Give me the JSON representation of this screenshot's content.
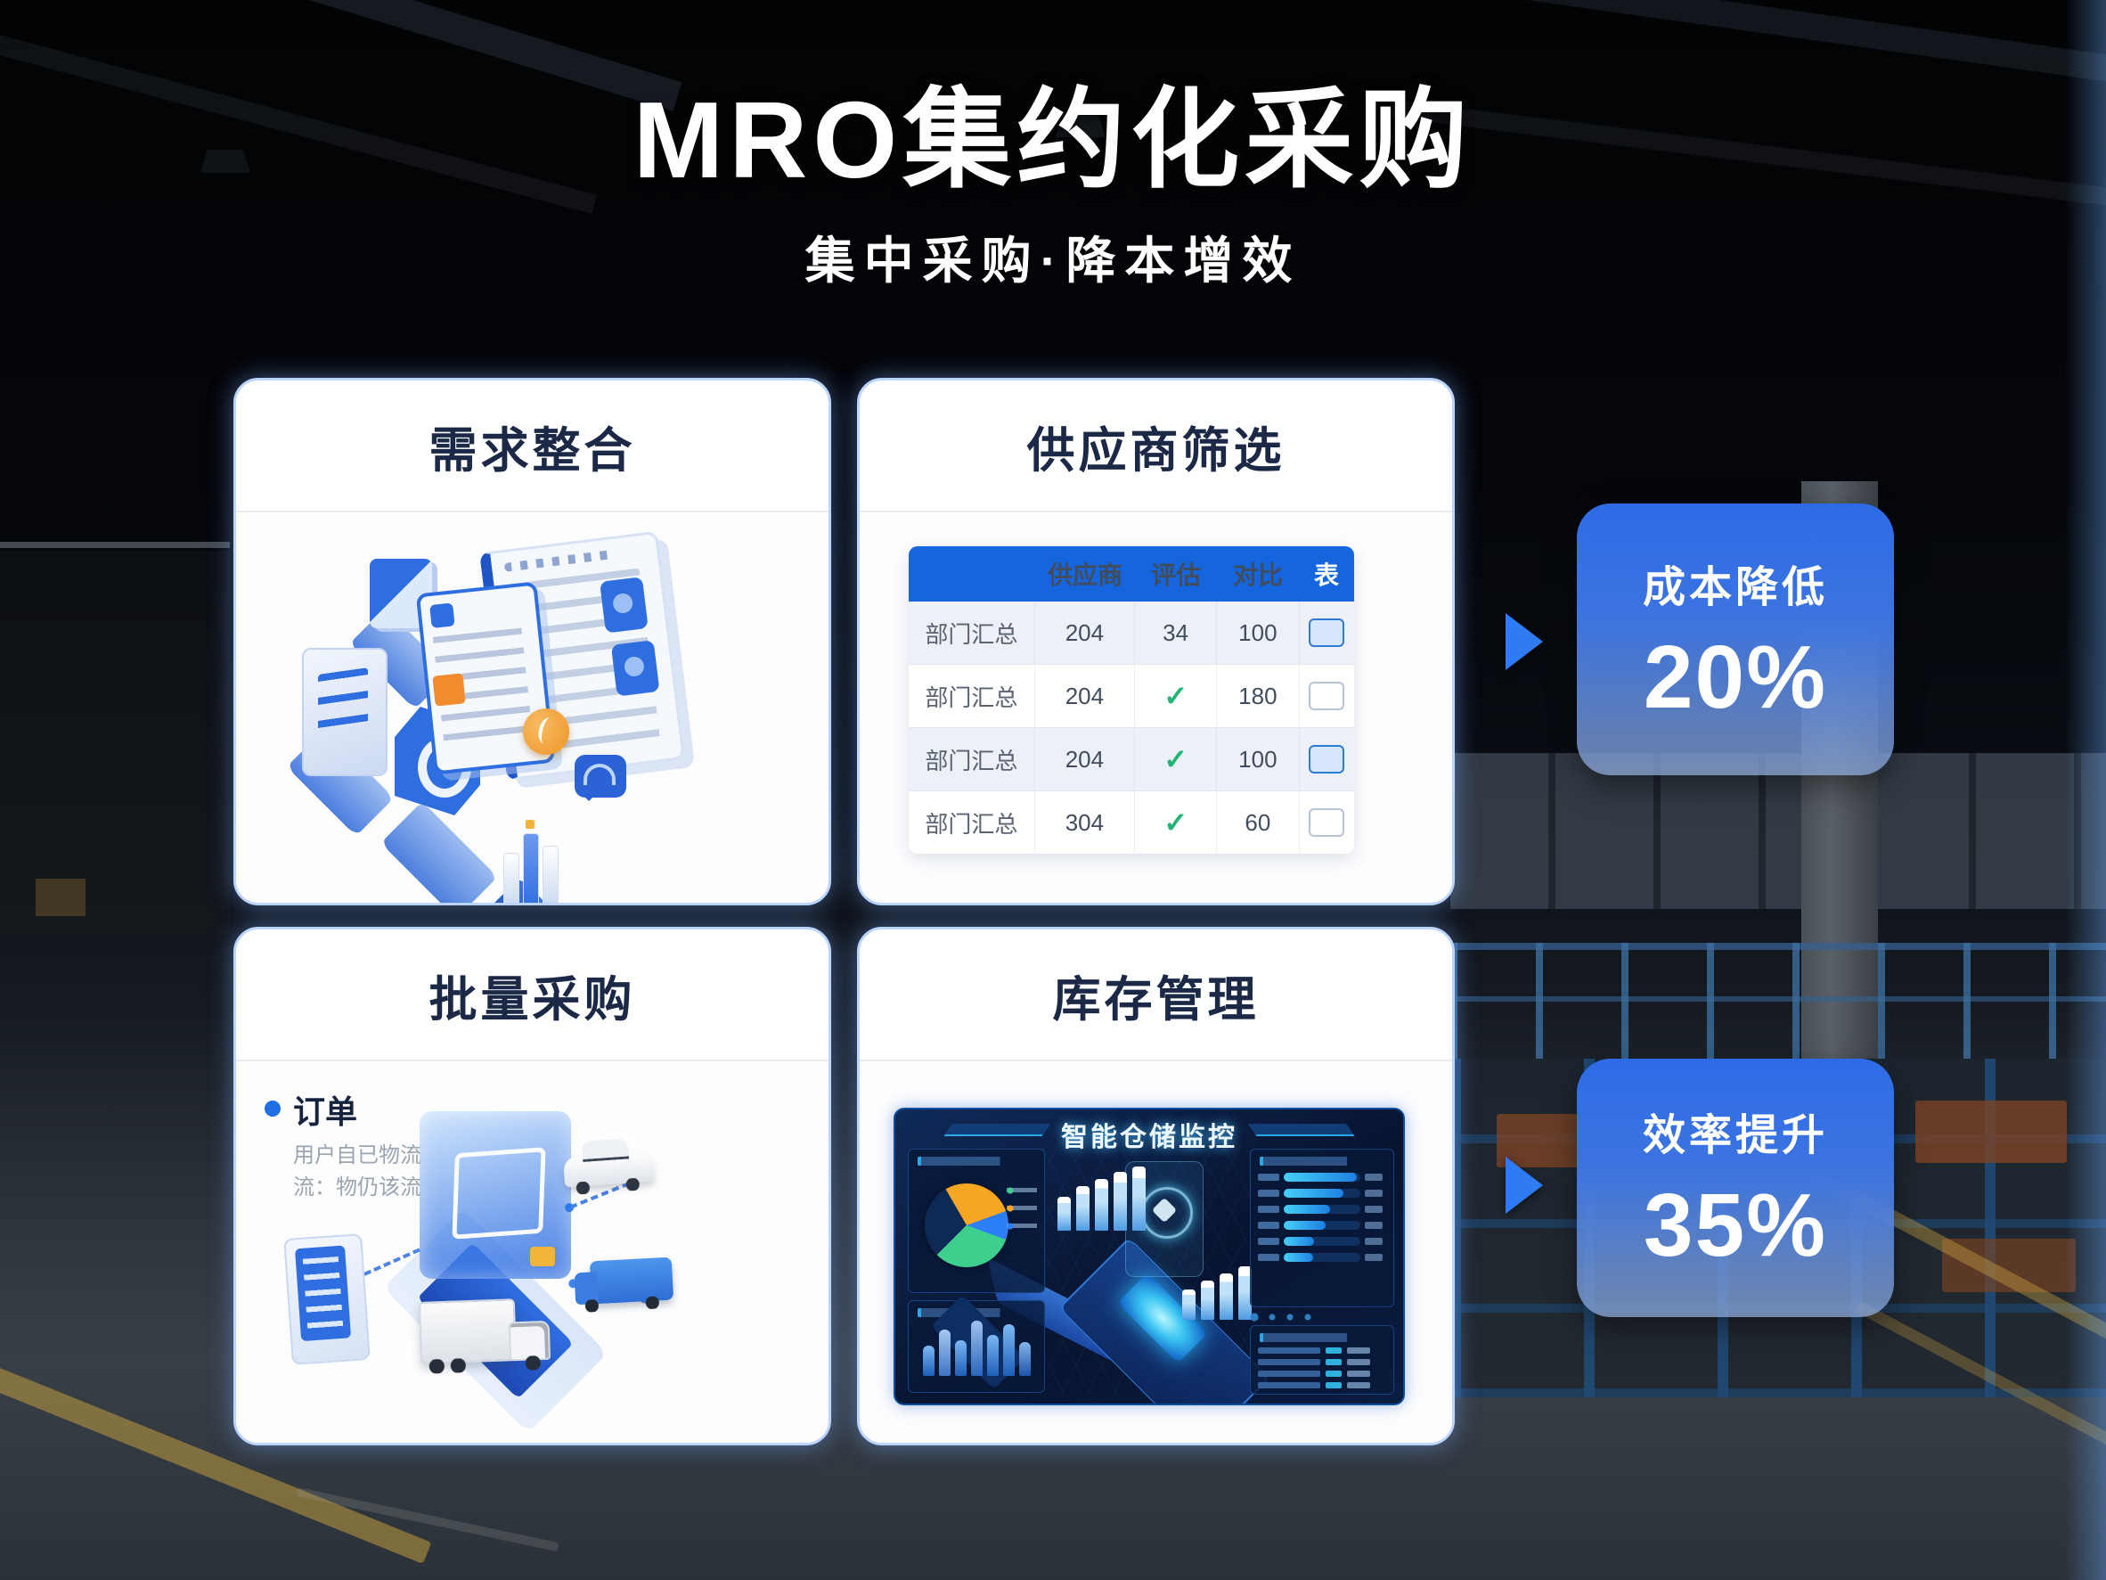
{
  "header": {
    "title": "MRO集约化采购",
    "subtitle": "集中采购·降本增效"
  },
  "cards": {
    "demand": {
      "title": "需求整合"
    },
    "supplier": {
      "title": "供应商筛选",
      "table": {
        "headers": {
          "name": "",
          "supplier": "供应商",
          "evaluate": "评估",
          "compare": "对比",
          "select": "表"
        },
        "rows": [
          {
            "name": "部门汇总",
            "supplier": "204",
            "evaluate": "34",
            "compare": "100",
            "checked": true
          },
          {
            "name": "部门汇总",
            "supplier": "204",
            "evaluate": "✓",
            "compare": "180",
            "checked": false
          },
          {
            "name": "部门汇总",
            "supplier": "204",
            "evaluate": "✓",
            "compare": "100",
            "checked": true
          },
          {
            "name": "部门汇总",
            "supplier": "304",
            "evaluate": "✓",
            "compare": "60",
            "checked": false
          }
        ]
      }
    },
    "bulk": {
      "title": "批量采购",
      "order_label": "订单",
      "order_note1": "用户自已物流",
      "order_note2": "流：物仍该流"
    },
    "inventory": {
      "title": "库存管理",
      "dashboard_title": "智能仓储监控"
    }
  },
  "badges": {
    "cost": {
      "label": "成本降低",
      "value": "20%"
    },
    "efficiency": {
      "label": "效率提升",
      "value": "35%"
    }
  },
  "colors": {
    "accent_blue": "#1f6be0",
    "table_header_blue": "#1566de",
    "check_green": "#21b573",
    "badge_gradient_top": "#2d6be6",
    "dashboard_bg": "#081430",
    "pie_orange": "#f5a623",
    "pie_green": "#3ecf8e",
    "pie_blue": "#2d7ff7",
    "floor_line_yellow": "#cda53e"
  }
}
